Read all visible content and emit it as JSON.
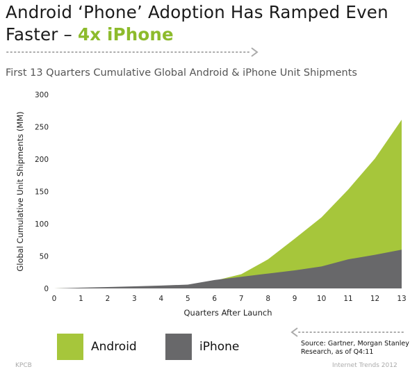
{
  "headline": {
    "line1": "Android ‘Phone’ Adoption Has Ramped Even",
    "line2_prefix": "Faster – ",
    "line2_accent": "4x iPhone"
  },
  "source_note": [
    "Source: Gartner, Morgan Stanley",
    "Research, as of Q4:11"
  ],
  "footer": {
    "left": "KPCB",
    "right": "Internet Trends 2012"
  },
  "colors": {
    "android": "#a6c63b",
    "iphone": "#68686a",
    "accent": "#8dbb2c"
  },
  "chart_data": {
    "type": "area",
    "stacked": true,
    "title": "First 13 Quarters Cumulative Global Android & iPhone Unit Shipments",
    "xlabel": "Quarters After Launch",
    "ylabel": "Global Cumulative Unit Shipments (MM)",
    "x": [
      0,
      1,
      2,
      3,
      4,
      5,
      6,
      7,
      8,
      9,
      10,
      11,
      12,
      13
    ],
    "xlim": [
      0,
      13
    ],
    "ylim": [
      0,
      300
    ],
    "yticks": [
      0,
      50,
      100,
      150,
      200,
      250,
      300
    ],
    "grid": false,
    "legend_position": "bottom-left",
    "series": [
      {
        "name": "Android",
        "color": "#a6c63b",
        "values": [
          0,
          0.6,
          1.3,
          2.3,
          3.5,
          5,
          12,
          22,
          45,
          77,
          110,
          153,
          201,
          261
        ]
      },
      {
        "name": "iPhone",
        "color": "#68686a",
        "values": [
          0,
          1.2,
          2.1,
          3.2,
          4.5,
          5.9,
          13,
          18,
          23,
          28,
          34,
          45,
          52,
          60
        ]
      }
    ]
  }
}
